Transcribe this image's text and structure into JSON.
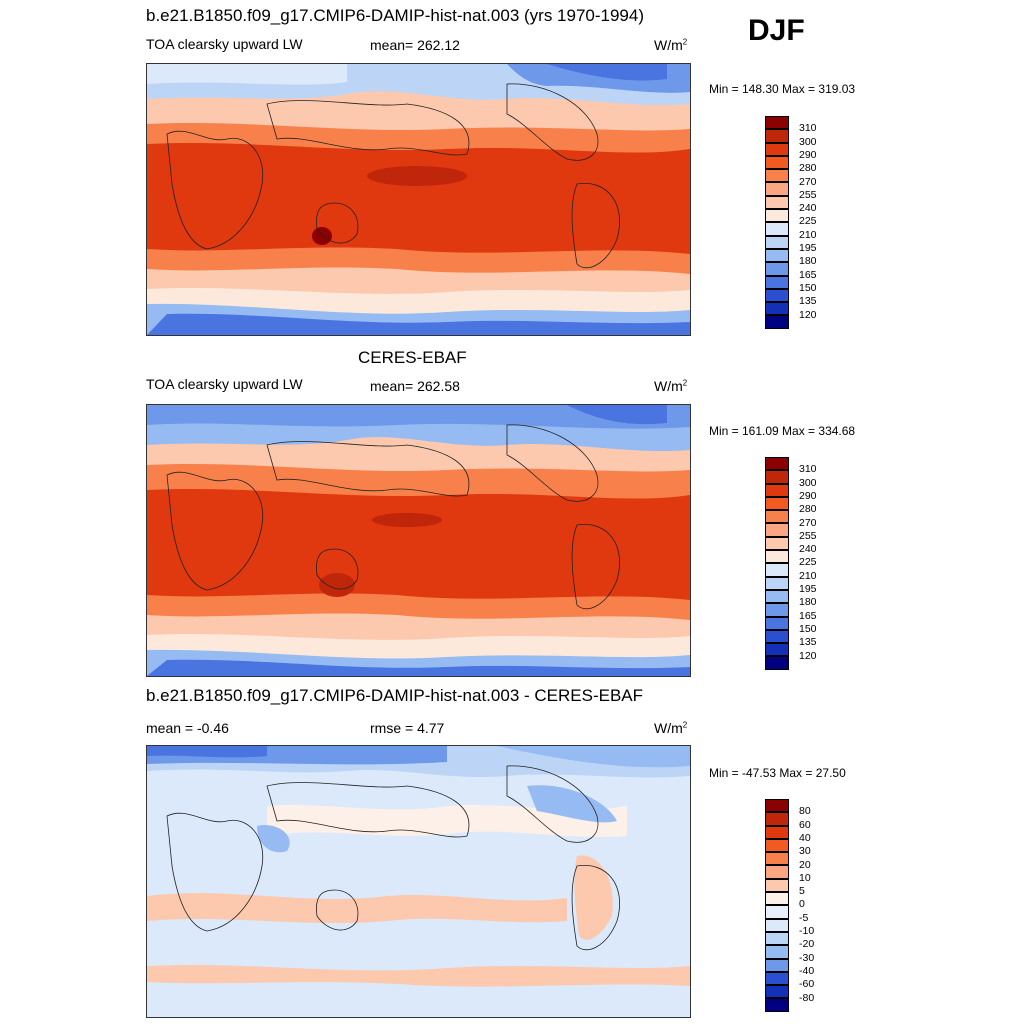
{
  "season": "DJF",
  "units": "W/m",
  "units_exp": "2",
  "panel1": {
    "title": "b.e21.B1850.f09_g17.CMIP6-DAMIP-hist-nat.003 (yrs 1970-1994)",
    "variable": "TOA clearsky upward LW",
    "mean": "mean= 262.12",
    "minmax": "Min = 148.30 Max = 319.03"
  },
  "panel2": {
    "title": "CERES-EBAF",
    "variable": "TOA clearsky upward LW",
    "mean": "mean= 262.58",
    "minmax": "Min = 161.09 Max = 334.68"
  },
  "panel3": {
    "title": "b.e21.B1850.f09_g17.CMIP6-DAMIP-hist-nat.003 - CERES-EBAF",
    "mean": "mean =  -0.46",
    "rmse": "rmse =   4.77",
    "minmax": "Min = -47.53 Max =  27.50"
  },
  "colorbar_abs": {
    "labels": [
      "310",
      "300",
      "290",
      "280",
      "270",
      "255",
      "240",
      "225",
      "210",
      "195",
      "180",
      "165",
      "150",
      "135",
      "120"
    ],
    "colors": [
      "#8b0000",
      "#c0260a",
      "#e0380f",
      "#f25a22",
      "#f8804a",
      "#fba683",
      "#fcc9ae",
      "#fde9dc",
      "#dbe9fb",
      "#bcd5f7",
      "#96bbf2",
      "#6e98ea",
      "#4a74e0",
      "#2a4fd0",
      "#1230b8",
      "#000080"
    ]
  },
  "colorbar_diff": {
    "labels": [
      "80",
      "60",
      "40",
      "30",
      "20",
      "10",
      "5",
      "0",
      "-5",
      "-10",
      "-20",
      "-30",
      "-40",
      "-60",
      "-80"
    ],
    "colors": [
      "#8b0000",
      "#c0260a",
      "#e0380f",
      "#f25a22",
      "#f8804a",
      "#fba683",
      "#fcc9ae",
      "#fdf0e8",
      "#e8f0fc",
      "#dbe9fb",
      "#bcd5f7",
      "#96bbf2",
      "#6e98ea",
      "#2a4fd0",
      "#1230b8",
      "#000080"
    ]
  }
}
